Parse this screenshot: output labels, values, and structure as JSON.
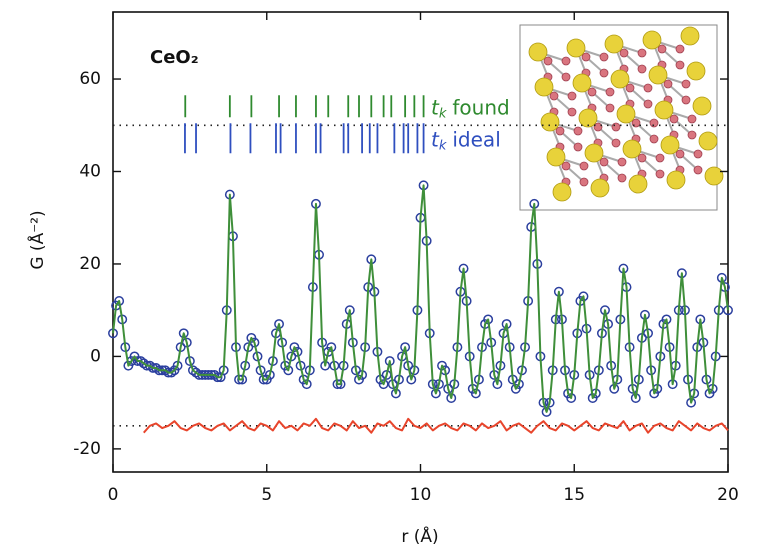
{
  "chart_data": {
    "type": "line",
    "title": "CeO₂",
    "x_label": "r (Å)",
    "y_label": "G (Å⁻²)",
    "xlim": [
      0,
      20
    ],
    "ylim": [
      -25,
      74.5
    ],
    "xticks": [
      0,
      5,
      10,
      15,
      20
    ],
    "yticks": [
      -20,
      0,
      20,
      40,
      60
    ],
    "hlines": [
      50,
      -15
    ],
    "tick_symbol": "t",
    "tick_subscript": "k",
    "tick_sets": [
      {
        "label": "found",
        "color": "#2f8a2f",
        "positions": [
          2.35,
          3.8,
          4.5,
          5.4,
          5.95,
          6.6,
          7.0,
          7.65,
          8.0,
          8.4,
          8.8,
          9.05,
          9.5,
          9.8,
          10.1
        ]
      },
      {
        "label": "ideal",
        "color": "#2f4fbf",
        "positions": [
          2.34,
          2.7,
          3.82,
          4.47,
          5.3,
          5.45,
          5.95,
          6.6,
          6.75,
          7.5,
          7.65,
          8.1,
          8.35,
          8.6,
          9.15,
          9.45,
          9.6,
          9.9,
          10.1
        ]
      }
    ],
    "x": [
      0.0,
      0.1,
      0.2,
      0.3,
      0.4,
      0.5,
      0.6,
      0.7,
      0.8,
      0.9,
      1.0,
      1.1,
      1.2,
      1.3,
      1.4,
      1.5,
      1.6,
      1.7,
      1.8,
      1.9,
      2.0,
      2.1,
      2.2,
      2.3,
      2.4,
      2.5,
      2.6,
      2.7,
      2.8,
      2.9,
      3.0,
      3.1,
      3.2,
      3.3,
      3.4,
      3.5,
      3.6,
      3.7,
      3.8,
      3.9,
      4.0,
      4.1,
      4.2,
      4.3,
      4.4,
      4.5,
      4.6,
      4.7,
      4.8,
      4.9,
      5.0,
      5.1,
      5.2,
      5.3,
      5.4,
      5.5,
      5.6,
      5.7,
      5.8,
      5.9,
      6.0,
      6.1,
      6.2,
      6.3,
      6.4,
      6.5,
      6.6,
      6.7,
      6.8,
      6.9,
      7.0,
      7.1,
      7.2,
      7.3,
      7.4,
      7.5,
      7.6,
      7.7,
      7.8,
      7.9,
      8.0,
      8.1,
      8.2,
      8.3,
      8.4,
      8.5,
      8.6,
      8.7,
      8.8,
      8.9,
      9.0,
      9.1,
      9.2,
      9.3,
      9.4,
      9.5,
      9.6,
      9.7,
      9.8,
      9.9,
      10.0,
      10.1,
      10.2,
      10.3,
      10.4,
      10.5,
      10.6,
      10.7,
      10.8,
      10.9,
      11.0,
      11.1,
      11.2,
      11.3,
      11.4,
      11.5,
      11.6,
      11.7,
      11.8,
      11.9,
      12.0,
      12.1,
      12.2,
      12.3,
      12.4,
      12.5,
      12.6,
      12.7,
      12.8,
      12.9,
      13.0,
      13.1,
      13.2,
      13.3,
      13.4,
      13.5,
      13.6,
      13.7,
      13.8,
      13.9,
      14.0,
      14.1,
      14.2,
      14.3,
      14.4,
      14.5,
      14.6,
      14.7,
      14.8,
      14.9,
      15.0,
      15.1,
      15.2,
      15.3,
      15.4,
      15.5,
      15.6,
      15.7,
      15.8,
      15.9,
      16.0,
      16.1,
      16.2,
      16.3,
      16.4,
      16.5,
      16.6,
      16.7,
      16.8,
      16.9,
      17.0,
      17.1,
      17.2,
      17.3,
      17.4,
      17.5,
      17.6,
      17.7,
      17.8,
      17.9,
      18.0,
      18.1,
      18.2,
      18.3,
      18.4,
      18.5,
      18.6,
      18.7,
      18.8,
      18.9,
      19.0,
      19.1,
      19.2,
      19.3,
      19.4,
      19.5,
      19.6,
      19.7,
      19.8,
      19.9,
      20.0
    ],
    "series": [
      {
        "color": "#2b3f9e",
        "marker": "circle",
        "values": [
          5,
          11,
          12,
          8,
          2,
          -2,
          -1,
          0,
          -1,
          -1,
          -1.5,
          -2,
          -2,
          -2.5,
          -2.5,
          -3,
          -3,
          -3,
          -3.5,
          -3.5,
          -3,
          -2,
          2,
          5,
          3,
          -1,
          -3,
          -3.5,
          -4,
          -4,
          -4,
          -4,
          -4,
          -4,
          -4.5,
          -4.5,
          -3,
          10,
          35,
          26,
          2,
          -5,
          -5,
          -2,
          2,
          4,
          3,
          0,
          -3,
          -5,
          -5,
          -4,
          -1,
          5,
          7,
          3,
          -2,
          -3,
          0,
          2,
          1,
          -2,
          -5,
          -6,
          -3,
          15,
          33,
          22,
          3,
          -2,
          1,
          2,
          -2,
          -6,
          -6,
          -2,
          7,
          10,
          3,
          -3,
          -5,
          -4,
          2,
          15,
          21,
          14,
          1,
          -5,
          -6,
          -4,
          -1,
          -6,
          -8,
          -5,
          0,
          2,
          -2,
          -5,
          -3,
          10,
          30,
          37,
          25,
          5,
          -6,
          -8,
          -6,
          -2,
          -3,
          -7,
          -9,
          -6,
          2,
          14,
          19,
          12,
          0,
          -7,
          -8,
          -5,
          2,
          7,
          8,
          3,
          -4,
          -6,
          -2,
          5,
          7,
          2,
          -5,
          -7,
          -6,
          -3,
          2,
          12,
          28,
          33,
          20,
          0,
          -10,
          -12,
          -10,
          -3,
          8,
          14,
          8,
          -3,
          -8,
          -9,
          -4,
          5,
          12,
          13,
          6,
          -4,
          -9,
          -8,
          -3,
          5,
          10,
          7,
          -2,
          -7,
          -5,
          8,
          19,
          15,
          2,
          -7,
          -9,
          -5,
          4,
          9,
          5,
          -3,
          -8,
          -7,
          0,
          7,
          8,
          2,
          -6,
          -2,
          10,
          18,
          10,
          -5,
          -10,
          -8,
          2,
          8,
          3,
          -5,
          -8,
          -7,
          0,
          10,
          17,
          15,
          10
        ]
      },
      {
        "color": "#3f8f3a",
        "values": [
          5,
          11,
          12,
          8,
          2,
          -2,
          -1,
          0,
          -1,
          -1,
          -1.5,
          -2,
          -2,
          -2.5,
          -2.5,
          -3,
          -3,
          -3,
          -3.5,
          -3.5,
          -3,
          -2,
          2,
          5,
          3,
          -1,
          -3,
          -3.5,
          -4,
          -4,
          -4,
          -4,
          -4,
          -4,
          -4.5,
          -4.5,
          -3,
          10,
          35,
          26,
          2,
          -5,
          -5,
          -2,
          2,
          4,
          3,
          0,
          -3,
          -5,
          -5,
          -4,
          -1,
          5,
          7,
          3,
          -2,
          -3,
          0,
          2,
          1,
          -2,
          -5,
          -6,
          -3,
          15,
          33,
          22,
          3,
          -2,
          1,
          2,
          -2,
          -6,
          -6,
          -2,
          7,
          10,
          3,
          -3,
          -5,
          -4,
          2,
          15,
          21,
          14,
          1,
          -5,
          -6,
          -4,
          -1,
          -6,
          -8,
          -5,
          0,
          2,
          -2,
          -5,
          -3,
          10,
          30,
          37,
          25,
          5,
          -6,
          -8,
          -6,
          -2,
          -3,
          -7,
          -9,
          -6,
          2,
          14,
          19,
          12,
          0,
          -7,
          -8,
          -5,
          2,
          7,
          8,
          3,
          -4,
          -6,
          -2,
          5,
          7,
          2,
          -5,
          -7,
          -6,
          -3,
          2,
          12,
          28,
          33,
          20,
          0,
          -10,
          -12,
          -10,
          -3,
          8,
          14,
          8,
          -3,
          -8,
          -9,
          -4,
          5,
          12,
          13,
          6,
          -4,
          -9,
          -8,
          -3,
          5,
          10,
          7,
          -2,
          -7,
          -5,
          8,
          19,
          15,
          2,
          -7,
          -9,
          -5,
          4,
          9,
          5,
          -3,
          -8,
          -7,
          0,
          7,
          8,
          2,
          -6,
          -2,
          10,
          18,
          10,
          -5,
          -10,
          -8,
          2,
          8,
          3,
          -5,
          -8,
          -7,
          0,
          10,
          17,
          15,
          10
        ]
      },
      {
        "color": "#e8452c",
        "x": [
          1.0,
          1.2,
          1.4,
          1.6,
          1.8,
          2.0,
          2.2,
          2.4,
          2.6,
          2.8,
          3.0,
          3.2,
          3.4,
          3.6,
          3.8,
          4.0,
          4.2,
          4.4,
          4.6,
          4.8,
          5.0,
          5.2,
          5.4,
          5.6,
          5.8,
          6.0,
          6.2,
          6.4,
          6.6,
          6.8,
          7.0,
          7.2,
          7.4,
          7.6,
          7.8,
          8.0,
          8.2,
          8.4,
          8.6,
          8.8,
          9.0,
          9.2,
          9.4,
          9.6,
          9.8,
          10.0,
          10.2,
          10.4,
          10.6,
          10.8,
          11.0,
          11.2,
          11.4,
          11.6,
          11.8,
          12.0,
          12.2,
          12.4,
          12.6,
          12.8,
          13.0,
          13.2,
          13.4,
          13.6,
          13.8,
          14.0,
          14.2,
          14.4,
          14.6,
          14.8,
          15.0,
          15.2,
          15.4,
          15.6,
          15.8,
          16.0,
          16.2,
          16.4,
          16.6,
          16.8,
          17.0,
          17.2,
          17.4,
          17.6,
          17.8,
          18.0,
          18.2,
          18.4,
          18.6,
          18.8,
          19.0,
          19.2,
          19.4,
          19.6,
          19.8,
          20.0
        ],
        "values": [
          -16.5,
          -15,
          -14.5,
          -15.5,
          -15,
          -14,
          -15.5,
          -16,
          -15,
          -14.5,
          -15.5,
          -16,
          -15,
          -14.5,
          -16,
          -15,
          -14,
          -15.5,
          -16,
          -14.5,
          -15,
          -16,
          -14,
          -15.5,
          -15,
          -16,
          -14.5,
          -15,
          -13.5,
          -15.5,
          -16,
          -14.5,
          -15,
          -16,
          -14,
          -15.5,
          -15,
          -16.5,
          -14.5,
          -15,
          -14,
          -15.5,
          -16,
          -13.5,
          -15,
          -15.5,
          -14.5,
          -16,
          -15,
          -14.5,
          -15.5,
          -16,
          -14.5,
          -15,
          -16,
          -14.5,
          -15.5,
          -15,
          -14,
          -16,
          -15,
          -14.5,
          -15.5,
          -16.5,
          -15,
          -14,
          -15.5,
          -16,
          -14.5,
          -15,
          -16,
          -15,
          -14,
          -15.5,
          -16,
          -14.5,
          -15,
          -15.5,
          -14,
          -16,
          -15,
          -14.5,
          -16.5,
          -15,
          -14.5,
          -15.5,
          -16,
          -14,
          -15,
          -16,
          -14.5,
          -15.5,
          -16,
          -15,
          -14.5,
          -16
        ]
      }
    ]
  }
}
